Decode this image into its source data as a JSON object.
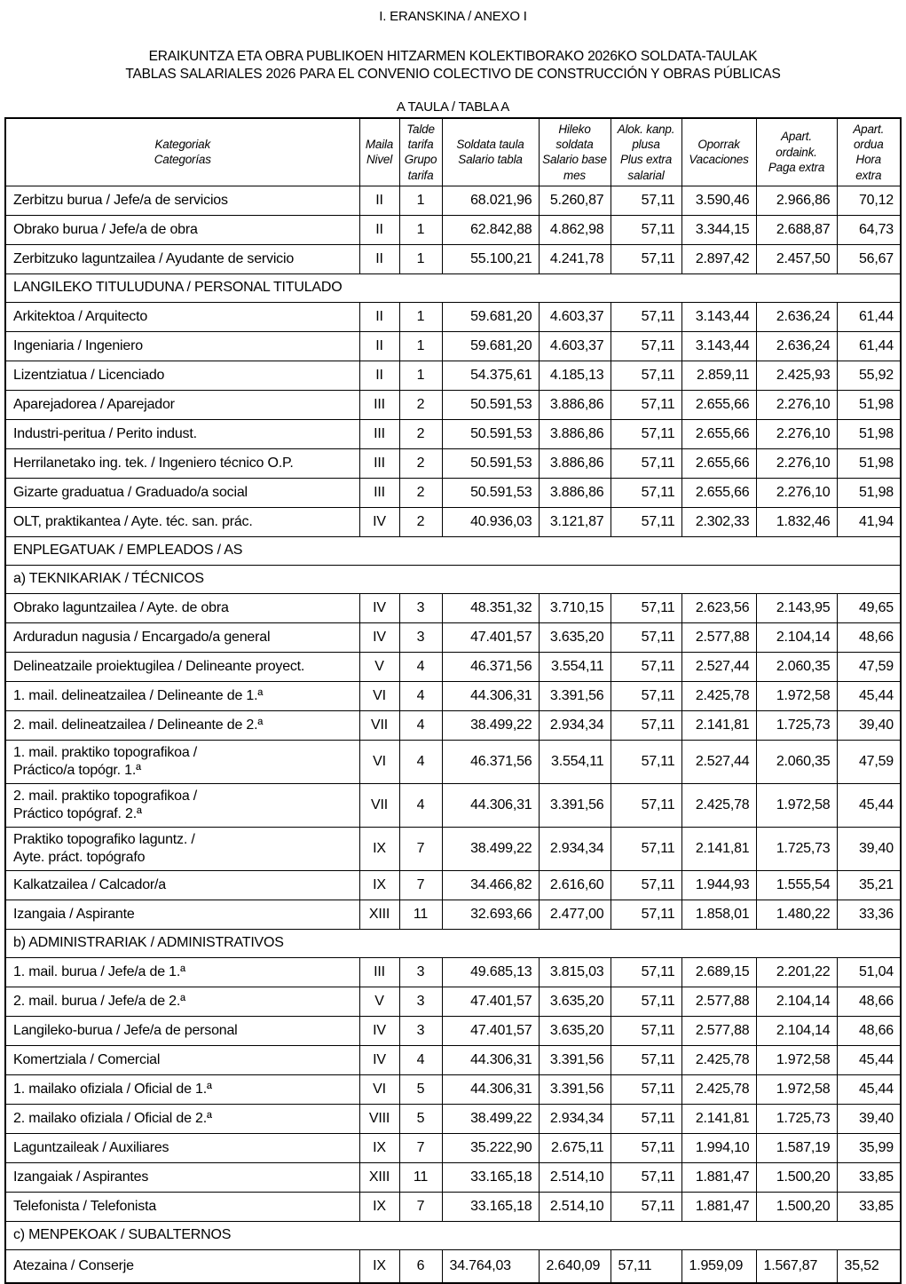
{
  "document": {
    "annex_title": "I. ERANSKINA / ANEXO I",
    "title_eu": "ERAIKUNTZA ETA OBRA PUBLIKOEN HITZARMEN KOLEKTIBORAKO 2026KO SOLDATA-TAULAK",
    "title_es": "TABLAS SALARIALES 2026 PARA EL CONVENIO COLECTIVO DE CONSTRUCCIÓN Y OBRAS PÚBLICAS",
    "table_caption": "A TAULA / TABLA A"
  },
  "salary_table": {
    "headers": [
      "Kategoriak\nCategorías",
      "Maila\nNivel",
      "Talde\ntarifa\nGrupo\ntarifa",
      "Soldata taula\nSalario tabla",
      "Hileko\nsoldata\nSalario base\nmes",
      "Alok. kanp.\nplusa\nPlus extra\nsalarial",
      "Oporrak\nVacaciones",
      "Apart.\nordaink.\nPaga extra",
      "Apart.\nordua\nHora\nextra"
    ],
    "rows": [
      {
        "cells": [
          "Zerbitzu burua / Jefe/a de servicios",
          "II",
          "1",
          "68.021,96",
          "5.260,87",
          "57,11",
          "3.590,46",
          "2.966,86",
          "70,12"
        ]
      },
      {
        "cells": [
          "Obrako burua / Jefe/a de obra",
          "II",
          "1",
          "62.842,88",
          "4.862,98",
          "57,11",
          "3.344,15",
          "2.688,87",
          "64,73"
        ]
      },
      {
        "cells": [
          "Zerbitzuko laguntzailea / Ayudante de servicio",
          "II",
          "1",
          "55.100,21",
          "4.241,78",
          "57,11",
          "2.897,42",
          "2.457,50",
          "56,67"
        ]
      },
      {
        "section": "LANGILEKO TITULUDUNA / PERSONAL TITULADO"
      },
      {
        "cells": [
          "Arkitektoa / Arquitecto",
          "II",
          "1",
          "59.681,20",
          "4.603,37",
          "57,11",
          "3.143,44",
          "2.636,24",
          "61,44"
        ]
      },
      {
        "cells": [
          "Ingeniaria / Ingeniero",
          "II",
          "1",
          "59.681,20",
          "4.603,37",
          "57,11",
          "3.143,44",
          "2.636,24",
          "61,44"
        ]
      },
      {
        "cells": [
          "Lizentziatua / Licenciado",
          "II",
          "1",
          "54.375,61",
          "4.185,13",
          "57,11",
          "2.859,11",
          "2.425,93",
          "55,92"
        ]
      },
      {
        "cells": [
          "Aparejadorea / Aparejador",
          "III",
          "2",
          "50.591,53",
          "3.886,86",
          "57,11",
          "2.655,66",
          "2.276,10",
          "51,98"
        ]
      },
      {
        "cells": [
          "Industri-peritua / Perito indust.",
          "III",
          "2",
          "50.591,53",
          "3.886,86",
          "57,11",
          "2.655,66",
          "2.276,10",
          "51,98"
        ]
      },
      {
        "cells": [
          "Herrilanetako ing. tek. / Ingeniero técnico O.P.",
          "III",
          "2",
          "50.591,53",
          "3.886,86",
          "57,11",
          "2.655,66",
          "2.276,10",
          "51,98"
        ]
      },
      {
        "cells": [
          "Gizarte graduatua / Graduado/a social",
          "III",
          "2",
          "50.591,53",
          "3.886,86",
          "57,11",
          "2.655,66",
          "2.276,10",
          "51,98"
        ]
      },
      {
        "cells": [
          "OLT, praktikantea / Ayte. téc. san. prác.",
          "IV",
          "2",
          "40.936,03",
          "3.121,87",
          "57,11",
          "2.302,33",
          "1.832,46",
          "41,94"
        ]
      },
      {
        "section": "ENPLEGATUAK / EMPLEADOS / AS"
      },
      {
        "section": "a) TEKNIKARIAK / TÉCNICOS"
      },
      {
        "cells": [
          "Obrako laguntzailea / Ayte. de obra",
          "IV",
          "3",
          "48.351,32",
          "3.710,15",
          "57,11",
          "2.623,56",
          "2.143,95",
          "49,65"
        ]
      },
      {
        "cells": [
          "Arduradun nagusia / Encargado/a general",
          "IV",
          "3",
          "47.401,57",
          "3.635,20",
          "57,11",
          "2.577,88",
          "2.104,14",
          "48,66"
        ]
      },
      {
        "cells": [
          "Delineatzaile proiektugilea / Delineante proyect.",
          "V",
          "4",
          "46.371,56",
          "3.554,11",
          "57,11",
          "2.527,44",
          "2.060,35",
          "47,59"
        ]
      },
      {
        "cells": [
          "1. mail. delineatzailea / Delineante de 1.ª",
          "VI",
          "4",
          "44.306,31",
          "3.391,56",
          "57,11",
          "2.425,78",
          "1.972,58",
          "45,44"
        ]
      },
      {
        "cells": [
          "2. mail. delineatzailea / Delineante de 2.ª",
          "VII",
          "4",
          "38.499,22",
          "2.934,34",
          "57,11",
          "2.141,81",
          "1.725,73",
          "39,40"
        ]
      },
      {
        "cells": [
          "1. mail. praktiko topografikoa /\nPráctico/a topógr. 1.ª",
          "VI",
          "4",
          "46.371,56",
          "3.554,11",
          "57,11",
          "2.527,44",
          "2.060,35",
          "47,59"
        ]
      },
      {
        "cells": [
          "2. mail. praktiko topografikoa /\nPráctico topógraf. 2.ª",
          "VII",
          "4",
          "44.306,31",
          "3.391,56",
          "57,11",
          "2.425,78",
          "1.972,58",
          "45,44"
        ]
      },
      {
        "cells": [
          "Praktiko topografiko laguntz. /\nAyte. práct. topógrafo",
          "IX",
          "7",
          "38.499,22",
          "2.934,34",
          "57,11",
          "2.141,81",
          "1.725,73",
          "39,40"
        ]
      },
      {
        "cells": [
          "Kalkatzailea / Calcador/a",
          "IX",
          "7",
          "34.466,82",
          "2.616,60",
          "57,11",
          "1.944,93",
          "1.555,54",
          "35,21"
        ]
      },
      {
        "cells": [
          "Izangaia / Aspirante",
          "XIII",
          "11",
          "32.693,66",
          "2.477,00",
          "57,11",
          "1.858,01",
          "1.480,22",
          "33,36"
        ]
      },
      {
        "section": "b) ADMINISTRARIAK / ADMINISTRATIVOS"
      },
      {
        "cells": [
          "1. mail. burua / Jefe/a de 1.ª",
          "III",
          "3",
          "49.685,13",
          "3.815,03",
          "57,11",
          "2.689,15",
          "2.201,22",
          "51,04"
        ]
      },
      {
        "cells": [
          "2. mail. burua / Jefe/a de 2.ª",
          "V",
          "3",
          "47.401,57",
          "3.635,20",
          "57,11",
          "2.577,88",
          "2.104,14",
          "48,66"
        ]
      },
      {
        "cells": [
          "Langileko-burua / Jefe/a de personal",
          "IV",
          "3",
          "47.401,57",
          "3.635,20",
          "57,11",
          "2.577,88",
          "2.104,14",
          "48,66"
        ]
      },
      {
        "cells": [
          "Komertziala / Comercial",
          "IV",
          "4",
          "44.306,31",
          "3.391,56",
          "57,11",
          "2.425,78",
          "1.972,58",
          "45,44"
        ]
      },
      {
        "cells": [
          "1. mailako ofiziala / Oficial de 1.ª",
          "VI",
          "5",
          "44.306,31",
          "3.391,56",
          "57,11",
          "2.425,78",
          "1.972,58",
          "45,44"
        ]
      },
      {
        "cells": [
          "2. mailako ofiziala / Oficial de 2.ª",
          "VIII",
          "5",
          "38.499,22",
          "2.934,34",
          "57,11",
          "2.141,81",
          "1.725,73",
          "39,40"
        ]
      },
      {
        "cells": [
          "Laguntzaileak / Auxiliares",
          "IX",
          "7",
          "35.222,90",
          "2.675,11",
          "57,11",
          "1.994,10",
          "1.587,19",
          "35,99"
        ]
      },
      {
        "cells": [
          "Izangaiak / Aspirantes",
          "XIII",
          "11",
          "33.165,18",
          "2.514,10",
          "57,11",
          "1.881,47",
          "1.500,20",
          "33,85"
        ]
      },
      {
        "cells": [
          "Telefonista / Telefonista",
          "IX",
          "7",
          "33.165,18",
          "2.514,10",
          "57,11",
          "1.881,47",
          "1.500,20",
          "33,85"
        ]
      },
      {
        "section": "c) MENPEKOAK / SUBALTERNOS"
      },
      {
        "cells": [
          "Atezaina / Conserje",
          "IX",
          "6",
          "34.764,03",
          "2.640,09",
          "57,11",
          "1.959,09",
          "1.567,87",
          "35,52"
        ],
        "align": "left",
        "last": true
      }
    ]
  }
}
